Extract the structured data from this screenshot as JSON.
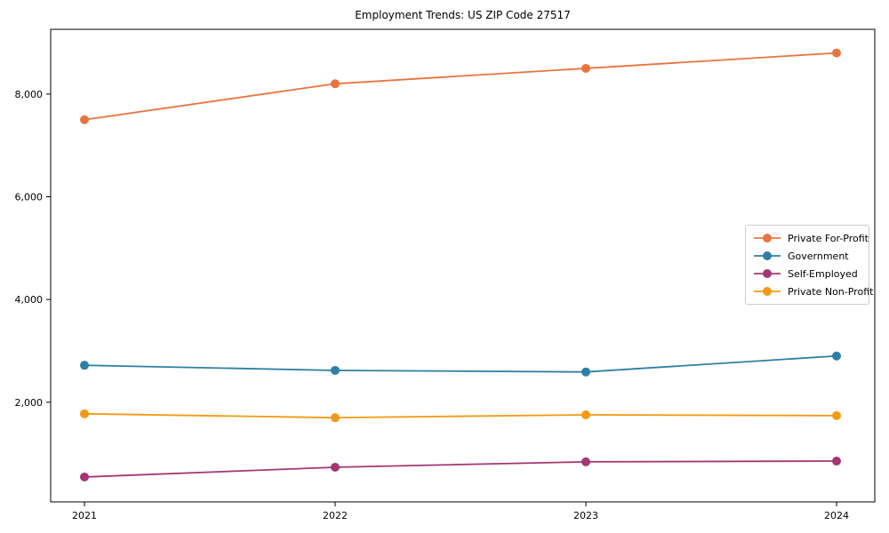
{
  "title": "Employment Trends: US ZIP Code 27517",
  "chart_data": {
    "type": "line",
    "title": "Employment Trends: US ZIP Code 27517",
    "xlabel": "",
    "ylabel": "",
    "grid": false,
    "legend_position": "center-right",
    "marker": "circle",
    "x": [
      2021,
      2022,
      2023,
      2024
    ],
    "x_tick_labels": [
      "2021",
      "2022",
      "2023",
      "2024"
    ],
    "y_ticks": [
      {
        "value": 2000,
        "label": "2,000"
      },
      {
        "value": 4000,
        "label": "4,000"
      },
      {
        "value": 6000,
        "label": "6,000"
      },
      {
        "value": 8000,
        "label": "8,000"
      }
    ],
    "ylim": [
      60,
      9260
    ],
    "series": [
      {
        "name": "Private For-Profit",
        "color": "#e8743f",
        "values": [
          7500,
          8200,
          8500,
          8800
        ]
      },
      {
        "name": "Government",
        "color": "#2e7fa3",
        "values": [
          2720,
          2620,
          2590,
          2900
        ]
      },
      {
        "name": "Self-Employed",
        "color": "#a43673",
        "values": [
          545,
          735,
          840,
          855
        ]
      },
      {
        "name": "Private Non-Profit",
        "color": "#f39a12",
        "values": [
          1775,
          1700,
          1755,
          1740
        ]
      }
    ]
  }
}
